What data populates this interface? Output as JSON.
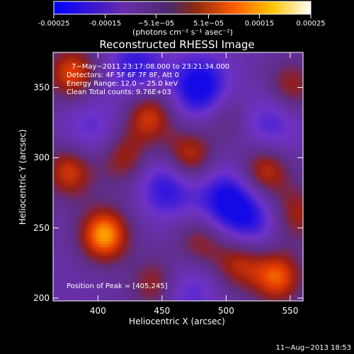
{
  "chart_data": {
    "type": "heatmap",
    "title": "Reconstructed RHESSI Image",
    "xlabel": "Heliocentric X (arcsec)",
    "ylabel": "Heliocentric Y (arcsec)",
    "xlim": [
      365,
      560
    ],
    "ylim": [
      198,
      375
    ],
    "xticks": [
      400,
      450,
      500,
      550
    ],
    "yticks": [
      200,
      250,
      300,
      350
    ],
    "colorbar": {
      "vmin": -0.00025,
      "vmax": 0.00025,
      "tick_values": [
        -0.00025,
        -0.00015,
        -5.1e-05,
        5.1e-05,
        0.00015,
        0.00025
      ],
      "tick_labels": [
        "-0.00025",
        "-0.00015",
        "−5.1e−05",
        "5.1e−05",
        "0.00015",
        "0.00025"
      ],
      "units_label": "(photons cm⁻² s⁻¹ asec⁻²)",
      "colors": [
        "#0000ff",
        "#6a2ca8",
        "#6b2f8e",
        "#b02e16",
        "#ff6a00",
        "#ffcf00",
        "#ffffff"
      ]
    },
    "annotations": [
      "7−May−2011 23:17:08.000 to 23:21:34.000",
      "Detectors: 4F 5F 6F 7F 8F, Att 0",
      "Energy Range: 12.0 − 25.0 keV",
      "Clean     Total counts: 9.76E+03"
    ],
    "peak_label": "Position of Peak = [405,245]",
    "peak": [
      405,
      245
    ],
    "sources": [
      {
        "x": 405,
        "y": 245,
        "amp": 1.0
      },
      {
        "x": 380,
        "y": 360,
        "amp": 0.75
      },
      {
        "x": 378,
        "y": 290,
        "amp": 0.7
      },
      {
        "x": 440,
        "y": 330,
        "amp": 0.7
      },
      {
        "x": 470,
        "y": 300,
        "amp": 0.75
      },
      {
        "x": 530,
        "y": 290,
        "amp": 0.7
      },
      {
        "x": 550,
        "y": 350,
        "amp": 0.55
      },
      {
        "x": 540,
        "y": 215,
        "amp": 0.8
      },
      {
        "x": 480,
        "y": 240,
        "amp": 0.5
      },
      {
        "x": 510,
        "y": 225,
        "amp": 0.6
      },
      {
        "x": 445,
        "y": 210,
        "amp": 0.55
      },
      {
        "x": 420,
        "y": 300,
        "amp": 0.55
      },
      {
        "x": 500,
        "y": 330,
        "amp": 0.35
      },
      {
        "x": 555,
        "y": 260,
        "amp": 0.55
      }
    ],
    "dips": [
      {
        "x": 480,
        "y": 350,
        "amp": 0.9
      },
      {
        "x": 455,
        "y": 280,
        "amp": 0.7
      },
      {
        "x": 500,
        "y": 270,
        "amp": 0.75
      },
      {
        "x": 430,
        "y": 365,
        "amp": 0.6
      },
      {
        "x": 535,
        "y": 325,
        "amp": 0.5
      },
      {
        "x": 395,
        "y": 320,
        "amp": 0.4
      },
      {
        "x": 520,
        "y": 255,
        "amp": 0.55
      },
      {
        "x": 470,
        "y": 205,
        "amp": 0.45
      }
    ]
  },
  "footer": {
    "date": "11−Aug−2013 18:53"
  }
}
